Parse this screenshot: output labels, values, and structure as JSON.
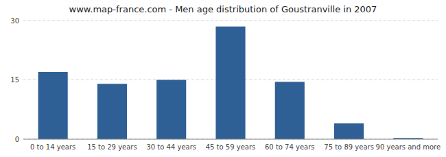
{
  "chart_data": {
    "type": "bar",
    "title": "www.map-france.com - Men age distribution of Goustranville in 2007",
    "categories": [
      "0 to 14 years",
      "15 to 29 years",
      "30 to 44 years",
      "45 to 59 years",
      "60 to 74 years",
      "75 to 89 years",
      "90 years and more"
    ],
    "values": [
      17,
      14,
      15,
      28.5,
      14.5,
      4,
      0.3
    ],
    "color": "#2e6096",
    "ylim": [
      0,
      30
    ],
    "yticks": [
      0,
      15,
      30
    ],
    "grid": true
  }
}
